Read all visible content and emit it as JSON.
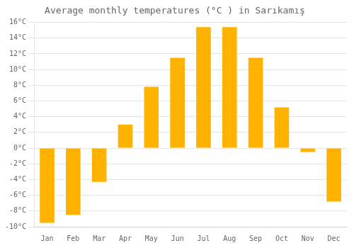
{
  "chart_data": {
    "type": "bar",
    "title": "Average monthly temperatures (°C ) in Sarıkamış",
    "categories": [
      "Jan",
      "Feb",
      "Mar",
      "Apr",
      "May",
      "Jun",
      "Jul",
      "Aug",
      "Sep",
      "Oct",
      "Nov",
      "Dec"
    ],
    "values": [
      -9.5,
      -8.5,
      -4.3,
      3.0,
      7.8,
      11.5,
      15.4,
      15.4,
      11.5,
      5.2,
      -0.5,
      -6.8
    ],
    "color": "#FFB300",
    "ylim": [
      -10,
      16
    ],
    "yticks": [
      {
        "value": -10,
        "label": "-10°C"
      },
      {
        "value": -8,
        "label": "-8°C"
      },
      {
        "value": -6,
        "label": "-6°C"
      },
      {
        "value": -4,
        "label": "-4°C"
      },
      {
        "value": -2,
        "label": "-2°C"
      },
      {
        "value": 0,
        "label": "0°C"
      },
      {
        "value": 2,
        "label": "2°C"
      },
      {
        "value": 4,
        "label": "4°C"
      },
      {
        "value": 6,
        "label": "6°C"
      },
      {
        "value": 8,
        "label": "8°C"
      },
      {
        "value": 10,
        "label": "10°C"
      },
      {
        "value": 12,
        "label": "12°C"
      },
      {
        "value": 14,
        "label": "14°C"
      },
      {
        "value": 16,
        "label": "16°C"
      }
    ],
    "grid": true
  }
}
